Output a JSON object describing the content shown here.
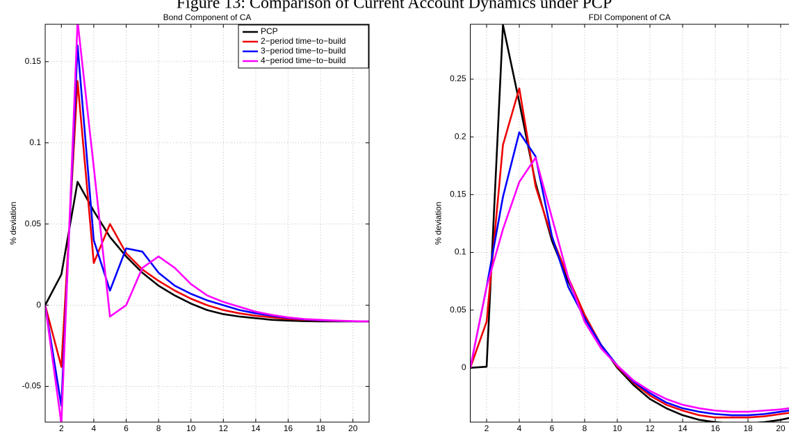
{
  "figure_title": "Figure 13: Comparison of Current Account Dynamics under PCP",
  "chart_data": [
    {
      "type": "line",
      "title": "Bond Component of CA",
      "ylabel": "% deviation",
      "x": [
        1,
        2,
        3,
        4,
        5,
        6,
        7,
        8,
        9,
        10,
        11,
        12,
        13,
        14,
        15,
        16,
        17,
        18,
        19,
        20,
        21
      ],
      "xlim": [
        1,
        21
      ],
      "ylim": [
        -0.072,
        0.173
      ],
      "xticks": [
        2,
        4,
        6,
        8,
        10,
        12,
        14,
        16,
        18,
        20
      ],
      "yticks": [
        -0.05,
        0,
        0.05,
        0.1,
        0.15
      ],
      "grid": true,
      "legend": "upper right",
      "series": [
        {
          "name": "PCP",
          "color": "#000000",
          "values": [
            0,
            0.019,
            0.076,
            0.058,
            0.042,
            0.03,
            0.02,
            0.012,
            0.006,
            0.001,
            -0.003,
            -0.0055,
            -0.007,
            -0.008,
            -0.009,
            -0.0095,
            -0.0098,
            -0.01,
            -0.01,
            -0.01,
            -0.01
          ]
        },
        {
          "name": "2−period time−to−build",
          "color": "#ee0000",
          "values": [
            0,
            -0.038,
            0.138,
            0.026,
            0.05,
            0.032,
            0.022,
            0.015,
            0.009,
            0.004,
            0.0,
            -0.003,
            -0.005,
            -0.0065,
            -0.0075,
            -0.0085,
            -0.009,
            -0.0095,
            -0.0097,
            -0.0099,
            -0.01
          ]
        },
        {
          "name": "3−period time−to−build",
          "color": "#0000ff",
          "values": [
            0,
            -0.062,
            0.16,
            0.04,
            0.009,
            0.035,
            0.033,
            0.02,
            0.012,
            0.007,
            0.003,
            0.0,
            -0.003,
            -0.005,
            -0.0065,
            -0.0078,
            -0.0087,
            -0.0093,
            -0.0096,
            -0.0099,
            -0.01
          ]
        },
        {
          "name": "4−period time−to−build",
          "color": "#ff00ff",
          "values": [
            0,
            -0.073,
            0.175,
            0.085,
            -0.007,
            0.0,
            0.023,
            0.03,
            0.023,
            0.013,
            0.006,
            0.002,
            -0.001,
            -0.004,
            -0.006,
            -0.0075,
            -0.0085,
            -0.009,
            -0.0095,
            -0.0098,
            -0.01
          ]
        }
      ]
    },
    {
      "type": "line",
      "title": "FDI Component of CA",
      "ylabel": "% deviation",
      "x": [
        1,
        2,
        3,
        4,
        5,
        6,
        7,
        8,
        9,
        10,
        11,
        12,
        13,
        14,
        15,
        16,
        17,
        18,
        19,
        20,
        21
      ],
      "xlim": [
        1,
        21
      ],
      "ylim": [
        -0.047,
        0.2975
      ],
      "xticks": [
        2,
        4,
        6,
        8,
        10,
        12,
        14,
        16,
        18,
        20
      ],
      "yticks": [
        0,
        0.05,
        0.1,
        0.15,
        0.2,
        0.25
      ],
      "grid": true,
      "series": [
        {
          "color": "#000000",
          "values": [
            0,
            0.001,
            0.297,
            0.23,
            0.16,
            0.11,
            0.075,
            0.045,
            0.02,
            0.0,
            -0.015,
            -0.027,
            -0.035,
            -0.041,
            -0.045,
            -0.047,
            -0.048,
            -0.048,
            -0.047,
            -0.045,
            -0.042
          ]
        },
        {
          "color": "#ee0000",
          "values": [
            0,
            0.04,
            0.193,
            0.242,
            0.157,
            0.113,
            0.078,
            0.046,
            0.02,
            0.001,
            -0.013,
            -0.024,
            -0.032,
            -0.037,
            -0.041,
            -0.043,
            -0.043,
            -0.043,
            -0.042,
            -0.04,
            -0.038
          ]
        },
        {
          "color": "#0000ff",
          "values": [
            0,
            0.07,
            0.148,
            0.204,
            0.183,
            0.114,
            0.07,
            0.043,
            0.02,
            0.002,
            -0.012,
            -0.022,
            -0.03,
            -0.035,
            -0.038,
            -0.04,
            -0.041,
            -0.041,
            -0.04,
            -0.038,
            -0.036
          ]
        },
        {
          "color": "#ff00ff",
          "values": [
            0,
            0.07,
            0.12,
            0.161,
            0.182,
            0.13,
            0.078,
            0.04,
            0.017,
            0.002,
            -0.011,
            -0.02,
            -0.027,
            -0.032,
            -0.035,
            -0.037,
            -0.038,
            -0.038,
            -0.037,
            -0.036,
            -0.034
          ]
        }
      ]
    }
  ]
}
